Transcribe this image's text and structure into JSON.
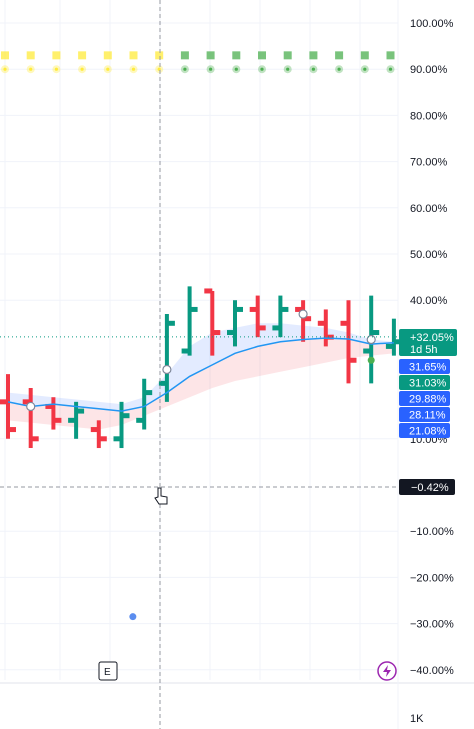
{
  "chart_data": {
    "type": "bar",
    "subtype": "ohlc-percent",
    "y_axis": {
      "unit": "%",
      "ticks": [
        {
          "value": 100,
          "label": "100.00%"
        },
        {
          "value": 90,
          "label": "90.00%"
        },
        {
          "value": 80,
          "label": "80.00%"
        },
        {
          "value": 70,
          "label": "70.00%"
        },
        {
          "value": 60,
          "label": "60.00%"
        },
        {
          "value": 50,
          "label": "50.00%"
        },
        {
          "value": 40,
          "label": "40.00%"
        },
        {
          "value": 10,
          "label": "10.00%"
        },
        {
          "value": -10,
          "label": "−10.00%"
        },
        {
          "value": -20,
          "label": "−20.00%"
        },
        {
          "value": -30,
          "label": "−30.00%"
        },
        {
          "value": -40,
          "label": "−40.00%"
        }
      ],
      "range": [
        -45,
        104
      ]
    },
    "volume_axis": {
      "label": "1K"
    },
    "price_tags": [
      {
        "value": 32.05,
        "label": "+32.05%",
        "sublabel": "1d 5h",
        "color": "#089981"
      },
      {
        "value": 31.65,
        "label": "31.65%",
        "color": "#2962ff"
      },
      {
        "value": 31.03,
        "label": "31.03%",
        "color": "#089981"
      },
      {
        "value": 29.88,
        "label": "29.88%",
        "color": "#2962ff"
      },
      {
        "value": 28.11,
        "label": "28.11%",
        "color": "#2962ff"
      },
      {
        "value": 21.08,
        "label": "21.08%",
        "color": "#2962ff"
      }
    ],
    "crosshair": {
      "value": -0.42,
      "label": "−0.42%"
    },
    "bars": [
      {
        "o": 18,
        "h": 24,
        "l": 10,
        "c": 12
      },
      {
        "o": 18,
        "h": 21,
        "l": 8,
        "c": 10
      },
      {
        "o": 17,
        "h": 19,
        "l": 12,
        "c": 14
      },
      {
        "o": 14,
        "h": 18,
        "l": 10,
        "c": 16
      },
      {
        "o": 12,
        "h": 14,
        "l": 8,
        "c": 10
      },
      {
        "o": 10,
        "h": 18,
        "l": 8,
        "c": 15
      },
      {
        "o": 14,
        "h": 23,
        "l": 12,
        "c": 20
      },
      {
        "o": 22,
        "h": 37,
        "l": 18,
        "c": 35
      },
      {
        "o": 29,
        "h": 43,
        "l": 28,
        "c": 38
      },
      {
        "o": 42,
        "h": 42,
        "l": 28,
        "c": 33
      },
      {
        "o": 33,
        "h": 40,
        "l": 30,
        "c": 38
      },
      {
        "o": 38,
        "h": 41,
        "l": 32,
        "c": 34
      },
      {
        "o": 34,
        "h": 41,
        "l": 32,
        "c": 38
      },
      {
        "o": 38,
        "h": 40,
        "l": 31,
        "c": 36
      },
      {
        "o": 35,
        "h": 38,
        "l": 30,
        "c": 32
      },
      {
        "o": 35,
        "h": 40,
        "l": 22,
        "c": 27
      },
      {
        "o": 29,
        "h": 41,
        "l": 22,
        "c": 33
      },
      {
        "o": 30,
        "h": 36,
        "l": 28,
        "c": 31
      }
    ],
    "bar_colors": {
      "up": "#089981",
      "down": "#f23645"
    },
    "ma_line": {
      "color": "#2196f3",
      "values": [
        18,
        17,
        17.5,
        17,
        16.5,
        16,
        17,
        20,
        23.5,
        26,
        28.5,
        30,
        31,
        31.5,
        31.8,
        31.6,
        30.5,
        30.8
      ]
    },
    "ma_markers": [
      {
        "bar_index": 1,
        "value": 17
      },
      {
        "bar_index": 7,
        "value": 25
      },
      {
        "bar_index": 13,
        "value": 37
      },
      {
        "bar_index": 16,
        "value": 31.5
      }
    ],
    "band_upper": {
      "color": "#2962ff",
      "values": [
        20,
        19.5,
        19,
        18.5,
        18,
        17.5,
        19,
        24,
        30,
        33,
        34,
        35,
        35,
        34.5,
        34,
        33,
        31.5,
        31
      ]
    },
    "band_lower": {
      "color": "#f23645",
      "values": [
        14,
        13.5,
        13,
        12.5,
        12,
        13,
        15,
        17,
        19,
        21,
        22.5,
        23.5,
        24.5,
        25.5,
        26.5,
        27.5,
        28,
        28.5
      ]
    },
    "signal_rows": [
      {
        "value": 93,
        "shape": "square",
        "colors": [
          "#ffeb3b",
          "#ffeb3b",
          "#ffeb3b",
          "#ffeb3b",
          "#ffeb3b",
          "#ffeb3b",
          "#ffeb3b",
          "#4caf50",
          "#4caf50",
          "#4caf50",
          "#4caf50",
          "#4caf50",
          "#4caf50",
          "#4caf50",
          "#4caf50",
          "#4caf50"
        ]
      },
      {
        "value": 90,
        "shape": "dot",
        "colors": [
          "#ffeb3b",
          "#ffeb3b",
          "#ffeb3b",
          "#ffeb3b",
          "#ffeb3b",
          "#ffeb3b",
          "#ffeb3b",
          "#4caf50",
          "#4caf50",
          "#4caf50",
          "#4caf50",
          "#4caf50",
          "#4caf50",
          "#4caf50",
          "#4caf50",
          "#4caf50"
        ]
      }
    ],
    "extra_points": [
      {
        "bar_index": 16,
        "value": 27,
        "color": "#4caf50"
      },
      {
        "bar_index": 5.5,
        "value": -28.5,
        "color": "#5b8def"
      }
    ],
    "earnings_marker": {
      "label": "E"
    },
    "flash_icon": "lightning-icon",
    "grid": true
  }
}
